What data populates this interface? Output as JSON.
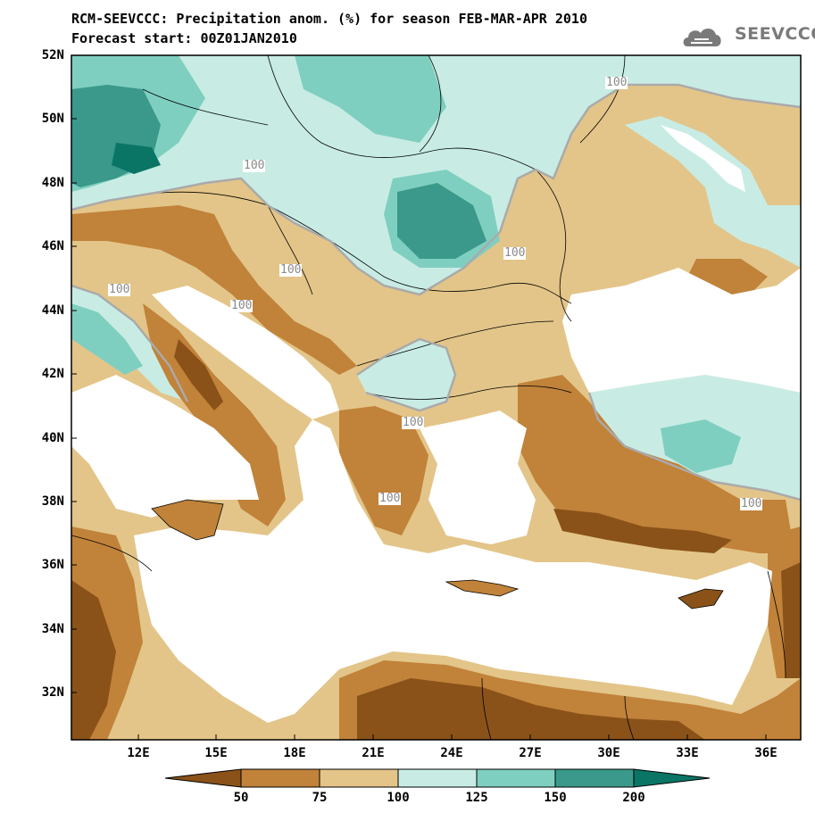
{
  "title": {
    "line1": "RCM-SEEVCCC: Precipitation anom. (%) for season FEB-MAR-APR 2010",
    "line2": "Forecast start: 00Z01JAN2010"
  },
  "logo": {
    "text": "SEEVCCC",
    "icon": "cloud-logo-icon"
  },
  "axes": {
    "lat_labels": [
      "52N",
      "50N",
      "48N",
      "46N",
      "44N",
      "42N",
      "40N",
      "38N",
      "36N",
      "34N",
      "32N"
    ],
    "lon_labels": [
      "12E",
      "15E",
      "18E",
      "21E",
      "24E",
      "27E",
      "30E",
      "33E",
      "36E"
    ]
  },
  "contour_labels": [
    "100",
    "100",
    "100",
    "100",
    "100",
    "100",
    "100",
    "100",
    "100"
  ],
  "colorbar": {
    "labels": [
      "50",
      "75",
      "100",
      "125",
      "150",
      "200"
    ],
    "colors": [
      "#8a5218",
      "#c1823a",
      "#e3c589",
      "#c8ece4",
      "#7fcfc0",
      "#3a998a",
      "#0b7565"
    ]
  },
  "map_colors": {
    "land_dry_strong": "#8a5218",
    "land_dry": "#c1823a",
    "land_light_dry": "#e3c589",
    "land_light_wet": "#c8ece4",
    "land_wet": "#7fcfc0",
    "land_wet_strong": "#3a998a",
    "land_wet_extreme": "#0b7565",
    "sea": "#ffffff",
    "contour": "#aaaaaa"
  }
}
